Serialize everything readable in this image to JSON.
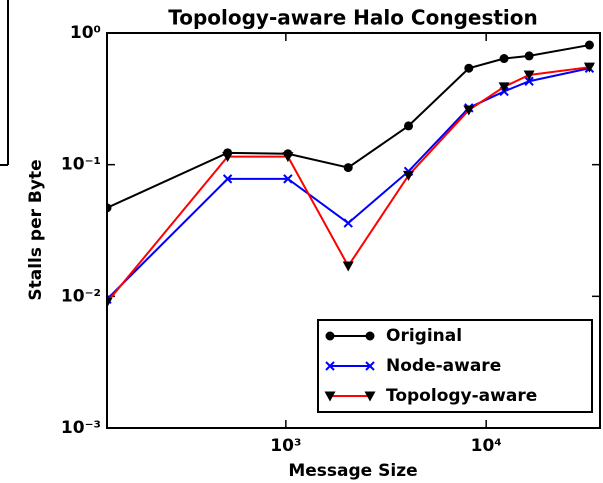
{
  "chart_data": {
    "type": "line",
    "title": "Topology-aware Halo Congestion",
    "xlabel": "Message Size",
    "ylabel": "Stalls per Byte",
    "x": [
      128,
      512,
      1024,
      2048,
      4096,
      8192,
      12288,
      16384,
      32768
    ],
    "series": [
      {
        "name": "Original",
        "color": "#000000",
        "marker": "o",
        "values": [
          0.047,
          0.123,
          0.121,
          0.095,
          0.197,
          0.54,
          0.64,
          0.67,
          0.81
        ]
      },
      {
        "name": "Node-aware",
        "color": "#0000ff",
        "marker": "x",
        "values": [
          0.0095,
          0.078,
          0.078,
          0.036,
          0.089,
          0.27,
          0.36,
          0.43,
          0.54
        ]
      },
      {
        "name": "Topology-aware",
        "color": "#ff0000",
        "marker": "v",
        "values": [
          0.009,
          0.115,
          0.115,
          0.017,
          0.083,
          0.26,
          0.39,
          0.48,
          0.55
        ]
      }
    ],
    "xscale": "log",
    "yscale": "log",
    "xlim": [
      128,
      37000
    ],
    "ylim": [
      0.001,
      1
    ],
    "xticks": [
      {
        "value": 1000,
        "label": "10³"
      },
      {
        "value": 10000,
        "label": "10⁴"
      }
    ],
    "yticks": [
      {
        "value": 0.001,
        "label": "10⁻³"
      },
      {
        "value": 0.01,
        "label": "10⁻²"
      },
      {
        "value": 0.1,
        "label": "10⁻¹"
      },
      {
        "value": 1,
        "label": "10⁰"
      }
    ],
    "legend": "lower right"
  }
}
